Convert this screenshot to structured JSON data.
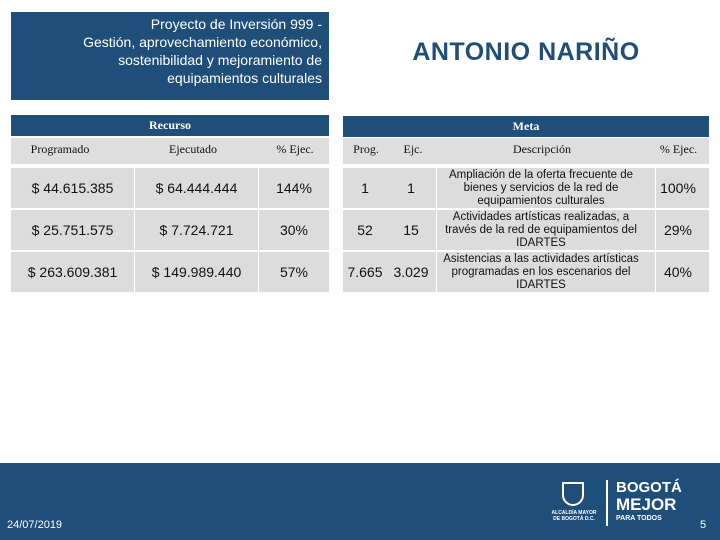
{
  "project": {
    "title_lines": [
      "Proyecto de Inversión  999 -",
      "Gestión, aprovechamiento económico,",
      "sostenibilidad y mejoramiento de",
      "equipamientos culturales"
    ]
  },
  "place": "ANTONIO NARIÑO",
  "recurso": {
    "band_label": "Recurso",
    "headers": {
      "programado": "Programado",
      "ejecutado": "Ejecutado",
      "pct": "% Ejec."
    },
    "rows": [
      {
        "programado": "$ 44.615.385",
        "ejecutado": "$ 64.444.444",
        "pct": "144%"
      },
      {
        "programado": "$ 25.751.575",
        "ejecutado": "$ 7.724.721",
        "pct": "30%"
      },
      {
        "programado": "$ 263.609.381",
        "ejecutado": "$ 149.989.440",
        "pct": "57%"
      }
    ]
  },
  "meta": {
    "band_label": "Meta",
    "headers": {
      "prog": "Prog.",
      "ejc": "Ejc.",
      "descripcion": "Descripción",
      "pct": "% Ejec."
    },
    "rows": [
      {
        "prog": "1",
        "ejc": "1",
        "descripcion": "Ampliación de la oferta frecuente de bienes y servicios de la red de equipamientos culturales",
        "pct": "100%"
      },
      {
        "prog": "52",
        "ejc": "15",
        "descripcion": "Actividades artísticas realizadas, a través de la red de equipamientos del IDARTES",
        "pct": "29%"
      },
      {
        "prog": "7.665",
        "ejc": "3.029",
        "descripcion": "Asistencias a las actividades artísticas programadas en los escenarios del IDARTES",
        "pct": "40%"
      }
    ]
  },
  "footer": {
    "date": "24/07/2019",
    "page": "5",
    "logo": {
      "crest_text": "ALCALDÍA MAYOR DE BOGOTÁ D.C.",
      "line1": "BOGOTÁ",
      "line2": "MEJOR",
      "line3": "PARA TODOS"
    }
  },
  "colors": {
    "primary": "#1f4e79",
    "row_bg": "#dcdcdc",
    "header_bg": "#dedede"
  }
}
